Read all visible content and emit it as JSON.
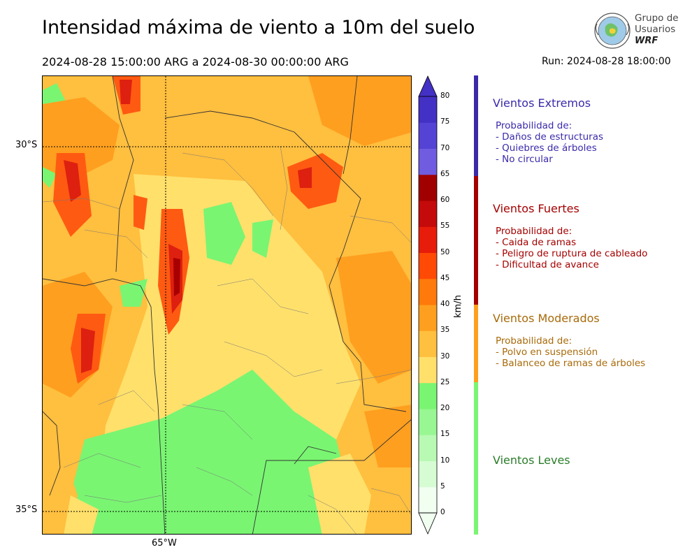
{
  "title": "Intensidad máxima de viento a 10m del suelo",
  "period": "2024-08-28 15:00:00 ARG  a  2024-08-30 00:00:00 ARG",
  "run": "Run: 2024-08-28 18:00:00",
  "logo": {
    "line1": "Grupo de",
    "line2": "Usuarios",
    "line3": "WRF"
  },
  "map": {
    "lat_labels": [
      "30°S",
      "35°S"
    ],
    "lon_labels": [
      "65°W"
    ],
    "colors": {
      "light_green": "#79f572",
      "yellow": "#ffe06b",
      "light_orange": "#ffbf3f",
      "orange": "#ff9f1f",
      "red_orange": "#ff5a12",
      "red": "#dd2010",
      "dark_red": "#a80000"
    }
  },
  "colorbar": {
    "unit": "km/h",
    "ticks": [
      "0",
      "5",
      "10",
      "15",
      "20",
      "25",
      "30",
      "35",
      "40",
      "45",
      "50",
      "55",
      "60",
      "65",
      "70",
      "75",
      "80"
    ],
    "colors": [
      "#f0fff0",
      "#d6fcd3",
      "#b8f9b3",
      "#98f792",
      "#79f572",
      "#ffe06b",
      "#ffbf3f",
      "#ff9f1f",
      "#ff7a0a",
      "#ff4a05",
      "#e81c0a",
      "#c40a0a",
      "#a00000",
      "#6f5ce0",
      "#5543d5",
      "#4330c5"
    ]
  },
  "categories": [
    {
      "title": "Vientos Extremos",
      "color": "#3a2aaa",
      "bar_color": "#3a2aaa",
      "lines": [
        "Probabilidad de:",
        "- Daños de estructuras",
        "- Quiebres de árboles",
        "- No circular"
      ]
    },
    {
      "title": "Vientos Fuertes",
      "color": "#a50000",
      "bar_color": "#a50000",
      "lines": [
        "Probabilidad de:",
        "- Caida de ramas",
        "- Peligro de ruptura de cableado",
        "- Dificultad de avance"
      ]
    },
    {
      "title": "Vientos Moderados",
      "color": "#a86a0a",
      "bar_color": "#ff9f1f",
      "lines": [
        "Probabilidad de:",
        "- Polvo en suspensión",
        "- Balanceo de ramas de árboles"
      ]
    },
    {
      "title": "Vientos Leves",
      "color": "#2a7d2a",
      "bar_color": "#79f572",
      "lines": []
    }
  ]
}
